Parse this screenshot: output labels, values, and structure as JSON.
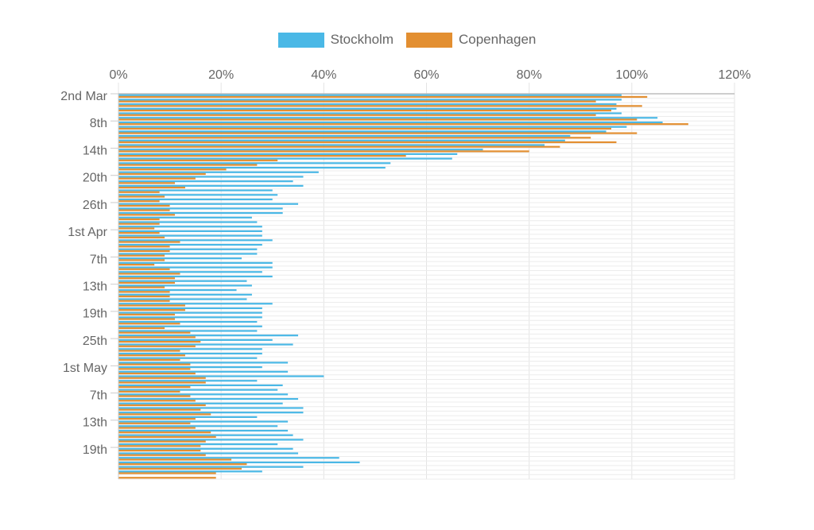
{
  "chart_data": {
    "type": "bar",
    "orientation": "horizontal",
    "xlim": [
      0,
      120
    ],
    "x_ticks": [
      "0%",
      "20%",
      "40%",
      "60%",
      "80%",
      "100%",
      "120%"
    ],
    "x_tick_values": [
      0,
      20,
      40,
      60,
      80,
      100,
      120
    ],
    "grid": true,
    "legend_position": "top",
    "y_tick_labels": [
      {
        "index": 0,
        "label": "2nd Mar"
      },
      {
        "index": 6,
        "label": "8th"
      },
      {
        "index": 12,
        "label": "14th"
      },
      {
        "index": 18,
        "label": "20th"
      },
      {
        "index": 24,
        "label": "26th"
      },
      {
        "index": 30,
        "label": "1st Apr"
      },
      {
        "index": 36,
        "label": "7th"
      },
      {
        "index": 42,
        "label": "13th"
      },
      {
        "index": 48,
        "label": "19th"
      },
      {
        "index": 54,
        "label": "25th"
      },
      {
        "index": 60,
        "label": "1st May"
      },
      {
        "index": 66,
        "label": "7th"
      },
      {
        "index": 72,
        "label": "13th"
      },
      {
        "index": 78,
        "label": "19th"
      }
    ],
    "series": [
      {
        "name": "Stockholm",
        "color": "#4ab8e6",
        "values": [
          98,
          98,
          97,
          97,
          98,
          105,
          106,
          99,
          95,
          88,
          87,
          83,
          71,
          66,
          65,
          53,
          52,
          39,
          36,
          34,
          36,
          30,
          31,
          30,
          35,
          32,
          32,
          26,
          27,
          28,
          28,
          28,
          30,
          28,
          27,
          27,
          24,
          30,
          30,
          28,
          30,
          25,
          26,
          23,
          26,
          25,
          30,
          28,
          28,
          28,
          27,
          28,
          27,
          35,
          30,
          34,
          28,
          28,
          27,
          33,
          28,
          33,
          40,
          27,
          32,
          31,
          33,
          35,
          32,
          36,
          36,
          27,
          33,
          31,
          33,
          34,
          36,
          31,
          34,
          35,
          43,
          47,
          36,
          28
        ]
      },
      {
        "name": "Copenhagen",
        "color": "#e38f31",
        "values": [
          103,
          93,
          102,
          96,
          93,
          101,
          111,
          96,
          101,
          92,
          97,
          86,
          80,
          56,
          31,
          27,
          21,
          17,
          15,
          11,
          13,
          8,
          9,
          8,
          10,
          10,
          11,
          8,
          8,
          7,
          8,
          9,
          12,
          10,
          10,
          9,
          9,
          7,
          10,
          12,
          11,
          11,
          9,
          10,
          10,
          10,
          13,
          13,
          11,
          11,
          12,
          9,
          14,
          15,
          16,
          15,
          12,
          13,
          12,
          14,
          14,
          15,
          17,
          17,
          14,
          12,
          14,
          15,
          17,
          16,
          18,
          15,
          14,
          15,
          18,
          19,
          17,
          16,
          16,
          17,
          22,
          25,
          24,
          19,
          19
        ]
      }
    ]
  }
}
